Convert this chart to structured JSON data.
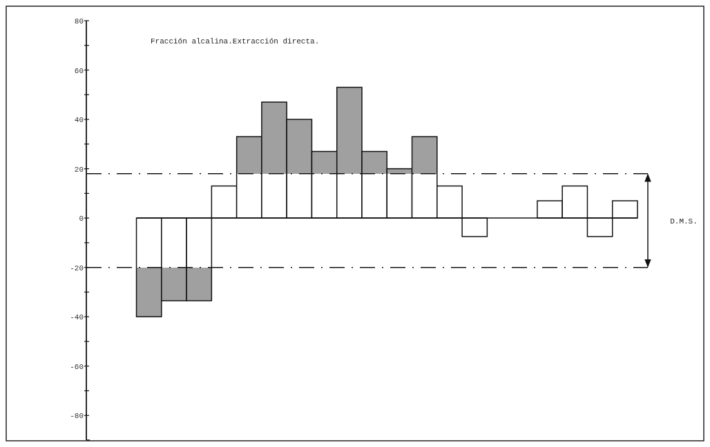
{
  "chart_data": {
    "type": "bar",
    "title": "Fracción alcalina.Extracción directa.",
    "categories": [
      null,
      null,
      null,
      null,
      null,
      null,
      null,
      null,
      null,
      null,
      null,
      null,
      null,
      null,
      null,
      null,
      null,
      null,
      null,
      null,
      null,
      null
    ],
    "values": [
      null,
      null,
      -40,
      -33.5,
      -33.5,
      13,
      33,
      47,
      40,
      27,
      53,
      27,
      20,
      33,
      13,
      -7.5,
      0,
      0,
      7,
      13,
      -7.5,
      7
    ],
    "ylim": [
      -90,
      80
    ],
    "yticks": [
      {
        "value": 80,
        "label": "80"
      },
      {
        "value": 70,
        "label": null
      },
      60,
      {
        "value": 50,
        "label": null
      },
      40,
      {
        "value": 30,
        "label": null
      },
      20,
      {
        "value": 10,
        "label": null
      },
      0,
      {
        "value": -10,
        "label": null
      },
      -20,
      {
        "value": -30,
        "label": null
      },
      -40,
      {
        "value": -50,
        "label": null
      },
      -60,
      {
        "value": -70,
        "label": null
      },
      -80
    ],
    "grid": false,
    "ref_lines": [
      {
        "axis": "y",
        "value": 18,
        "line_style": "dashed"
      },
      {
        "axis": "y",
        "value": -20,
        "line_style": "dashed"
      }
    ],
    "annotations": [
      "D.M.S."
    ]
  }
}
